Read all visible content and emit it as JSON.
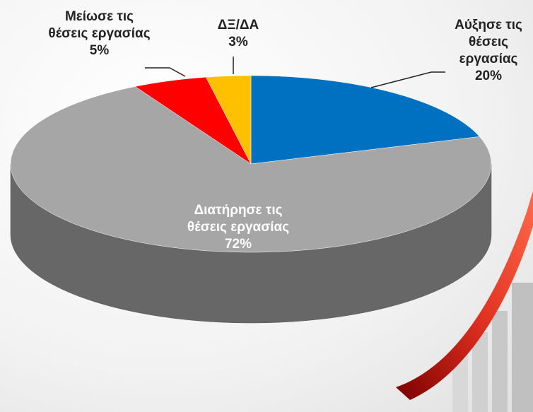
{
  "chart_data": {
    "type": "pie",
    "categories": [
      "Αύξησε τις θέσεις εργασίας",
      "Διατήρησε τις θέσεις εργασίας",
      "Μείωσε τις θέσεις εργασίας",
      "ΔΞ/ΔΑ"
    ],
    "values": [
      20,
      72,
      5,
      3
    ],
    "value_labels": [
      "20%",
      "72%",
      "5%",
      "3%"
    ],
    "colors": [
      "#0070c0",
      "#a6a6a6",
      "#ff0000",
      "#ffc000"
    ]
  }
}
